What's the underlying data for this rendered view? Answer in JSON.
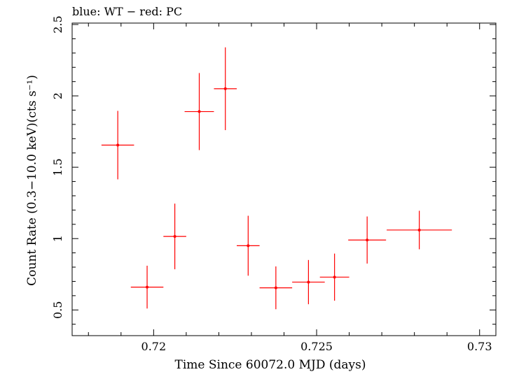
{
  "chart_data": {
    "type": "scatter",
    "title": "blue: WT − red: PC",
    "xlabel": "Time Since 60072.0 MJD (days)",
    "ylabel": "Count Rate (0.3−10.0 keV)(cts s⁻¹)",
    "xlim": [
      0.7175,
      0.7305
    ],
    "ylim": [
      0.32,
      2.51
    ],
    "x_ticks": [
      0.72,
      0.725,
      0.73
    ],
    "x_tick_labels": [
      "0.72",
      "0.725",
      "0.73"
    ],
    "y_ticks": [
      0.5,
      1,
      1.5,
      2,
      2.5
    ],
    "y_tick_labels": [
      "0.5",
      "1",
      "1.5",
      "2",
      "2.5"
    ],
    "grid": false,
    "series": [
      {
        "name": "PC",
        "color": "#ff0000",
        "points": [
          {
            "x": 0.7189,
            "xerr": 0.0005,
            "y": 1.655,
            "yerr": 0.24
          },
          {
            "x": 0.7198,
            "xerr": 0.0005,
            "y": 0.66,
            "yerr": 0.15
          },
          {
            "x": 0.72065,
            "xerr": 0.00035,
            "y": 1.015,
            "yerr": 0.23
          },
          {
            "x": 0.7214,
            "xerr": 0.00045,
            "y": 1.89,
            "yerr": 0.27
          },
          {
            "x": 0.7222,
            "xerr": 0.00035,
            "y": 2.05,
            "yerr": 0.29
          },
          {
            "x": 0.7229,
            "xerr": 0.00035,
            "y": 0.95,
            "yerr": 0.21
          },
          {
            "x": 0.72375,
            "xerr": 0.0005,
            "y": 0.655,
            "yerr": 0.15
          },
          {
            "x": 0.72475,
            "xerr": 0.0005,
            "y": 0.695,
            "yerr": 0.155
          },
          {
            "x": 0.72555,
            "xerr": 0.00045,
            "y": 0.73,
            "yerr": 0.165
          },
          {
            "x": 0.72655,
            "xerr": 0.00058,
            "y": 0.99,
            "yerr": 0.165
          },
          {
            "x": 0.72815,
            "xerr": 0.001,
            "y": 1.06,
            "yerr": 0.135
          }
        ]
      }
    ]
  }
}
